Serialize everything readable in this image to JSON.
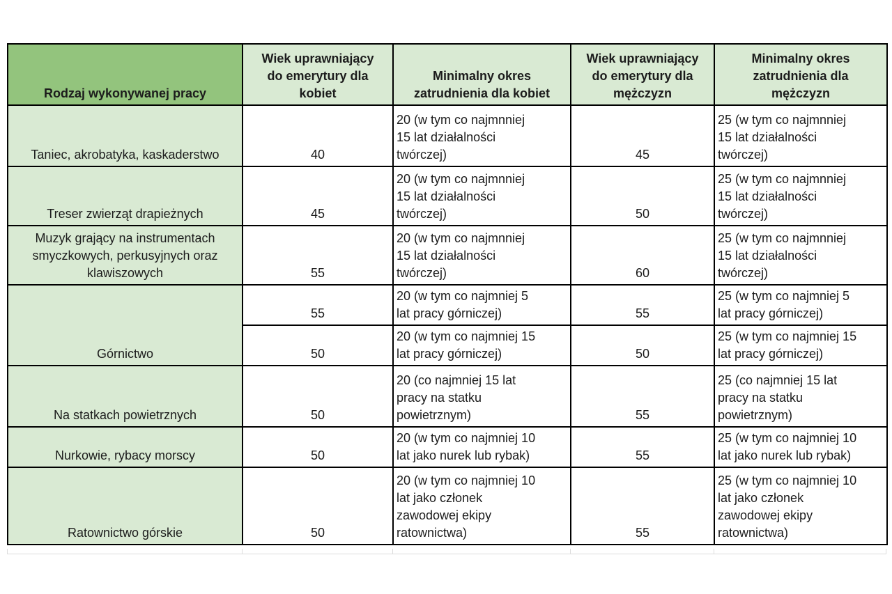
{
  "colors": {
    "header_primary_green": "#93c47d",
    "header_secondary_green": "#d9ead3",
    "row_label_green": "#d9ead3",
    "border_black": "#000000",
    "page_background": "#ffffff"
  },
  "table": {
    "columns": [
      "Rodzaj wykonywanej pracy",
      "Wiek uprawniający do emerytury dla kobiet",
      "Minimalny okres zatrudnienia dla kobiet",
      "Wiek uprawniający do emerytury dla mężczyzn",
      "Minimalny okres zatrudnienia dla mężczyzn"
    ],
    "rows": [
      {
        "cells": [
          {
            "t": "Taniec, akrobatyka, kaskaderstwo",
            "k": "job"
          },
          {
            "t": "40",
            "k": "age"
          },
          {
            "t": "20 (w tym co najmnniej 15 lat działalności twórczej)",
            "k": "period"
          },
          {
            "t": "45",
            "k": "age"
          },
          {
            "t": "25 (w tym co najmnniej 15 lat działalności twórczej)",
            "k": "period"
          }
        ]
      },
      {
        "cells": [
          {
            "t": "Treser zwierząt drapieżnych",
            "k": "job"
          },
          {
            "t": "45",
            "k": "age"
          },
          {
            "t": "20 (w tym co najmnniej 15 lat działalności twórczej)",
            "k": "period"
          },
          {
            "t": "50",
            "k": "age"
          },
          {
            "t": "25 (w tym co najmnniej 15 lat działalności twórczej)",
            "k": "period"
          }
        ]
      },
      {
        "cells": [
          {
            "t": "Muzyk grający na instrumentach smyczkowych, perkusyjnych oraz klawiszowych",
            "k": "job"
          },
          {
            "t": "55",
            "k": "age"
          },
          {
            "t": "20 (w tym co najmnniej 15 lat działalności twórczej)",
            "k": "period"
          },
          {
            "t": "60",
            "k": "age"
          },
          {
            "t": "25 (w tym co najmnniej 15 lat działalności twórczej)",
            "k": "period"
          }
        ]
      },
      {
        "cells": [
          {
            "t": "Górnictwo",
            "k": "job",
            "rs": 2
          },
          {
            "t": "55",
            "k": "age"
          },
          {
            "t": "20 (w tym co najmniej 5 lat pracy górniczej)",
            "k": "period"
          },
          {
            "t": "55",
            "k": "age"
          },
          {
            "t": "25 (w tym co najmniej 5 lat pracy górniczej)",
            "k": "period"
          }
        ]
      },
      {
        "cells": [
          {
            "t": "50",
            "k": "age"
          },
          {
            "t": "20 (w tym co najmniej 15 lat pracy górniczej)",
            "k": "period"
          },
          {
            "t": "50",
            "k": "age"
          },
          {
            "t": "25 (w tym co najmniej 15 lat pracy górniczej)",
            "k": "period"
          }
        ]
      },
      {
        "cells": [
          {
            "t": "Na statkach powietrznych",
            "k": "job"
          },
          {
            "t": "50",
            "k": "age"
          },
          {
            "t": "20 (co najmniej 15 lat pracy na statku powietrznym)",
            "k": "period"
          },
          {
            "t": "55",
            "k": "age"
          },
          {
            "t": "25 (co najmniej 15 lat pracy na statku powietrznym)",
            "k": "period"
          }
        ]
      },
      {
        "cells": [
          {
            "t": "Nurkowie, rybacy morscy",
            "k": "job"
          },
          {
            "t": "50",
            "k": "age"
          },
          {
            "t": "20 (w tym co najmniej 10 lat jako nurek lub rybak)",
            "k": "period"
          },
          {
            "t": "55",
            "k": "age"
          },
          {
            "t": "25 (w tym co najmniej 10 lat jako nurek lub rybak)",
            "k": "period"
          }
        ]
      },
      {
        "cells": [
          {
            "t": "Ratownictwo górskie",
            "k": "job"
          },
          {
            "t": "50",
            "k": "age"
          },
          {
            "t": "20 (w tym co najmniej 10 lat jako członek zawodowej ekipy ratownictwa)",
            "k": "period"
          },
          {
            "t": "55",
            "k": "age"
          },
          {
            "t": "25 (w tym co najmniej 10 lat jako członek zawodowej ekipy ratownictwa)",
            "k": "period"
          }
        ]
      }
    ]
  }
}
